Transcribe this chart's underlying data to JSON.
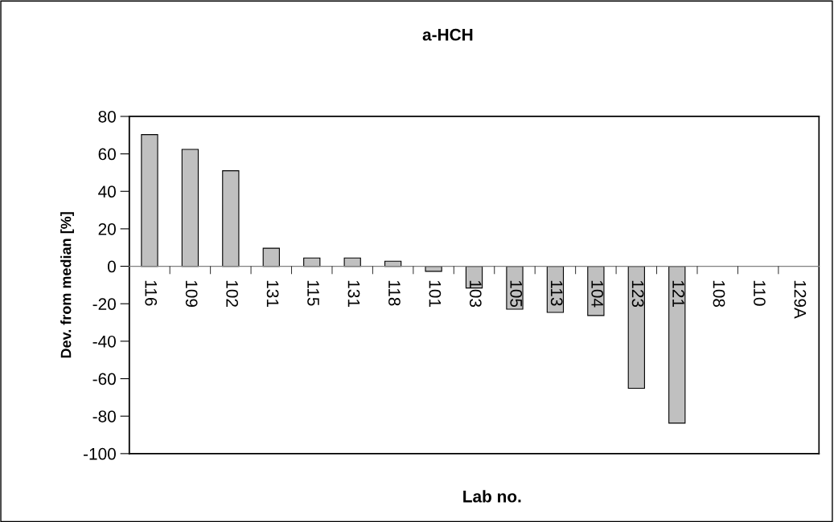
{
  "chart_data": {
    "type": "bar",
    "title": "a-HCH",
    "xlabel": "Lab no.",
    "ylabel": "Dev. from median [%]",
    "categories": [
      "116",
      "109",
      "102",
      "131",
      "115",
      "131",
      "118",
      "101",
      "103",
      "105",
      "113",
      "104",
      "123",
      "121",
      "108",
      "110",
      "129A"
    ],
    "values": [
      70.3,
      62.4,
      51,
      9.6,
      4.4,
      4.4,
      2.7,
      -2.7,
      -11.6,
      -22.9,
      -24.6,
      -26.3,
      -65.1,
      -83.7,
      null,
      null,
      null
    ],
    "color": "#c0c0c0",
    "ylim": [
      -100,
      80
    ],
    "yticks": [
      -100,
      -80,
      -60,
      -40,
      -20,
      0,
      20,
      40,
      60,
      80
    ],
    "grid": false,
    "legend": false
  }
}
